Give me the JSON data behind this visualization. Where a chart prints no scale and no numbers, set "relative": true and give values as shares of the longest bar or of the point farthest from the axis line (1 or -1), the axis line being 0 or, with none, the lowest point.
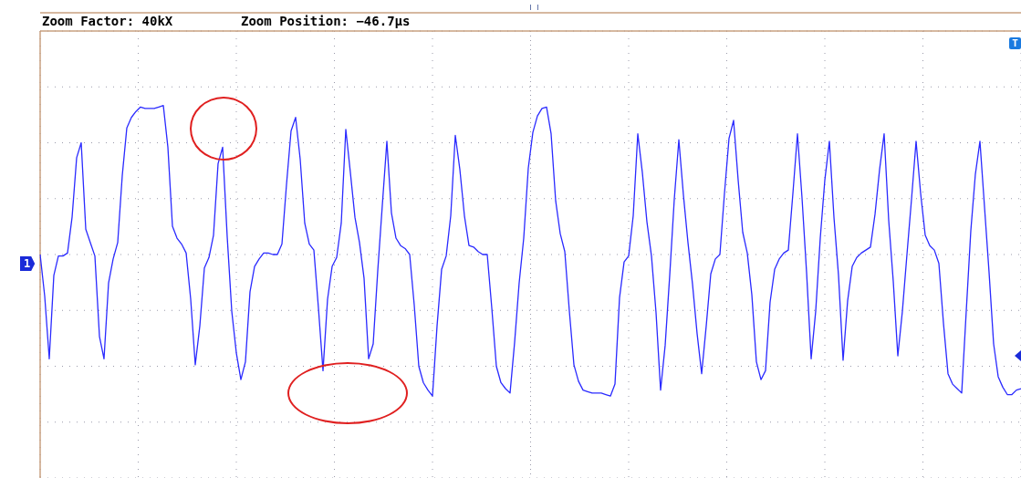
{
  "chart_data": {
    "type": "line",
    "relative": true,
    "title": "Zoom Factor: 40kX",
    "subtitle": "Zoom Position: −46.7µs",
    "annotations": [
      "1",
      "T"
    ],
    "legend": false,
    "marker": "none",
    "line_style": "solid",
    "categories": [
      null,
      null,
      null,
      null,
      null,
      null,
      null,
      null,
      null,
      null,
      null,
      null,
      null,
      null,
      null,
      null,
      null,
      null,
      null,
      null,
      null,
      null,
      null,
      null,
      null,
      null,
      null,
      null,
      null,
      null,
      null,
      null,
      null,
      null,
      null,
      null,
      null,
      null,
      null,
      null,
      null,
      null,
      null,
      null,
      null,
      null,
      null,
      null,
      null,
      null,
      null,
      null,
      null,
      null,
      null,
      null,
      null,
      null,
      null,
      null,
      null,
      null,
      null,
      null,
      null,
      null,
      null,
      null,
      null,
      null,
      null,
      null,
      null,
      null,
      null,
      null,
      null,
      null,
      null,
      null,
      null,
      null,
      null,
      null,
      null,
      null,
      null,
      null,
      null,
      null,
      null,
      null,
      null,
      null,
      null,
      null,
      null,
      null,
      null,
      null,
      null,
      null,
      null,
      null,
      null,
      null,
      null,
      null,
      null,
      null,
      null,
      null,
      null,
      null,
      null,
      null,
      null,
      null,
      null,
      null,
      null,
      null,
      null,
      null,
      null,
      null,
      null,
      null,
      null,
      null,
      null,
      null,
      null,
      null,
      null,
      null,
      null,
      null,
      null,
      null,
      null,
      null,
      null,
      null,
      null,
      null,
      null,
      null,
      null,
      null,
      null,
      null,
      null,
      null,
      null,
      null,
      null,
      null,
      null,
      null,
      null,
      null,
      null,
      null,
      null,
      null,
      null,
      null,
      null,
      null,
      null,
      null,
      null,
      null,
      null,
      null,
      null,
      null,
      null,
      null,
      null,
      null,
      null,
      null,
      null,
      null,
      null,
      null,
      null,
      null,
      null,
      null,
      null,
      null,
      null,
      null,
      null,
      null,
      null,
      null,
      null,
      null,
      null,
      null,
      null,
      null,
      null,
      null,
      null,
      null,
      null,
      null,
      null,
      null,
      null,
      null
    ],
    "series": [
      {
        "color": "#2a2aff",
        "values": [
          0,
          -0.28,
          -0.7,
          -0.14,
          -0.01,
          -0.01,
          0.01,
          0.25,
          0.65,
          0.75,
          0.17,
          0.08,
          -0.01,
          -0.55,
          -0.7,
          -0.19,
          -0.03,
          0.08,
          0.53,
          0.85,
          0.92,
          0.96,
          0.99,
          0.98,
          0.98,
          0.98,
          0.99,
          1,
          0.72,
          0.19,
          0.11,
          0.07,
          0.01,
          -0.3,
          -0.74,
          -0.48,
          -0.09,
          -0.02,
          0.13,
          0.61,
          0.72,
          0.12,
          -0.38,
          -0.66,
          -0.84,
          -0.72,
          -0.25,
          -0.08,
          -0.03,
          0.01,
          0.01,
          0,
          0,
          0.07,
          0.47,
          0.83,
          0.92,
          0.64,
          0.21,
          0.07,
          0.03,
          -0.36,
          -0.78,
          -0.3,
          -0.08,
          -0.02,
          0.21,
          0.84,
          0.55,
          0.25,
          0.08,
          -0.16,
          -0.7,
          -0.6,
          -0.11,
          0.33,
          0.76,
          0.28,
          0.11,
          0.06,
          0.04,
          0,
          -0.34,
          -0.75,
          -0.86,
          -0.91,
          -0.95,
          -0.48,
          -0.1,
          -0.01,
          0.26,
          0.8,
          0.57,
          0.26,
          0.06,
          0.05,
          0.02,
          0,
          0,
          -0.36,
          -0.75,
          -0.86,
          -0.9,
          -0.93,
          -0.59,
          -0.19,
          0.11,
          0.58,
          0.82,
          0.93,
          0.98,
          0.99,
          0.81,
          0.36,
          0.14,
          0.02,
          -0.38,
          -0.74,
          -0.85,
          -0.91,
          -0.92,
          -0.93,
          -0.93,
          -0.93,
          -0.94,
          -0.95,
          -0.87,
          -0.29,
          -0.05,
          -0.01,
          0.26,
          0.81,
          0.55,
          0.22,
          -0.01,
          -0.39,
          -0.91,
          -0.61,
          -0.14,
          0.37,
          0.77,
          0.4,
          0.08,
          -0.2,
          -0.53,
          -0.8,
          -0.48,
          -0.13,
          -0.03,
          0,
          0.41,
          0.78,
          0.9,
          0.5,
          0.15,
          0.01,
          -0.27,
          -0.72,
          -0.84,
          -0.78,
          -0.32,
          -0.1,
          -0.03,
          0.01,
          0.03,
          0.41,
          0.81,
          0.38,
          -0.12,
          -0.7,
          -0.38,
          0.11,
          0.5,
          0.76,
          0.25,
          -0.14,
          -0.71,
          -0.31,
          -0.08,
          -0.02,
          0.01,
          0.03,
          0.05,
          0.27,
          0.57,
          0.81,
          0.23,
          -0.18,
          -0.68,
          -0.38,
          0,
          0.37,
          0.76,
          0.41,
          0.13,
          0.06,
          0.03,
          -0.06,
          -0.46,
          -0.8,
          -0.87,
          -0.9,
          -0.93,
          -0.38,
          0.16,
          0.54,
          0.76,
          0.32,
          -0.12,
          -0.6,
          -0.82,
          -0.89,
          -0.94,
          -0.94,
          -0.91,
          -0.9
        ]
      }
    ]
  }
}
